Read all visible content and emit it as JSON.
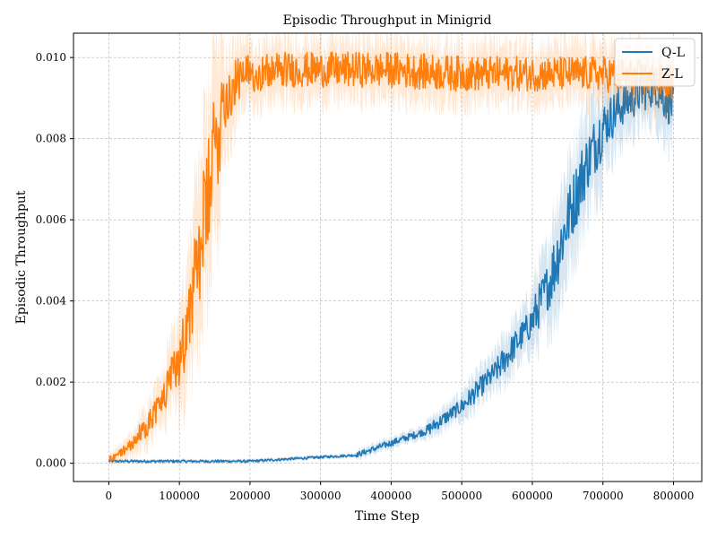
{
  "chart_data": {
    "type": "line",
    "title": "Episodic Throughput in Minigrid",
    "xlabel": "Time Step",
    "ylabel": "Episodic Throughput",
    "xlim": [
      -50000,
      840000
    ],
    "ylim": [
      -0.00045,
      0.0106
    ],
    "xticks": [
      0,
      100000,
      200000,
      300000,
      400000,
      500000,
      600000,
      700000,
      800000
    ],
    "xtick_labels": [
      "0",
      "100000",
      "200000",
      "300000",
      "400000",
      "500000",
      "600000",
      "700000",
      "800000"
    ],
    "yticks": [
      0.0,
      0.002,
      0.004,
      0.006,
      0.008,
      0.01
    ],
    "ytick_labels": [
      "0.000",
      "0.002",
      "0.004",
      "0.006",
      "0.008",
      "0.010"
    ],
    "grid": true,
    "legend_position": "top-right",
    "series": [
      {
        "name": "Q-L",
        "color": "#1f77b4",
        "x": [
          0,
          50000,
          100000,
          150000,
          200000,
          250000,
          300000,
          350000,
          400000,
          450000,
          500000,
          550000,
          600000,
          625000,
          650000,
          675000,
          700000,
          725000,
          750000,
          775000,
          800000
        ],
        "y": [
          5e-05,
          5e-05,
          5e-05,
          5e-05,
          5e-05,
          0.0001,
          0.00015,
          0.0002,
          0.0005,
          0.0008,
          0.0014,
          0.0023,
          0.0035,
          0.0045,
          0.006,
          0.0073,
          0.0083,
          0.0088,
          0.0091,
          0.0093,
          0.0088
        ]
      },
      {
        "name": "Z-L",
        "color": "#ff7f0e",
        "x": [
          0,
          20000,
          40000,
          60000,
          80000,
          100000,
          120000,
          140000,
          160000,
          180000,
          200000,
          250000,
          300000,
          400000,
          500000,
          600000,
          700000,
          800000
        ],
        "y": [
          0.0001,
          0.0003,
          0.0006,
          0.0011,
          0.0017,
          0.0026,
          0.0042,
          0.0065,
          0.0088,
          0.0094,
          0.0096,
          0.0097,
          0.0097,
          0.0097,
          0.0096,
          0.0096,
          0.0096,
          0.0094
        ]
      }
    ]
  }
}
